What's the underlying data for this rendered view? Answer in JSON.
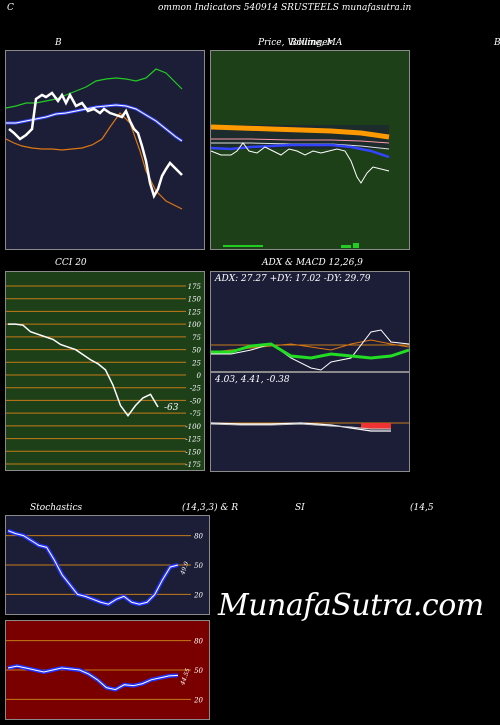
{
  "header": {
    "left_letter": "C",
    "title": "ommon  Indicators 540914  SRUSTEELS munafasutra.in"
  },
  "colors": {
    "navy": "#1c1e38",
    "green": "#1d4019",
    "maroon": "#7a0000",
    "grid_orange": "#c47a18"
  },
  "labels": {
    "bollinger": "B",
    "price_ma": "Price,  Volume,  MA",
    "price_ma_overlay": "Bollinger",
    "right_edge": "B",
    "cci": "CCI 20",
    "adx_macd": "ADX  & MACD 12,26,9",
    "adx_values": "ADX: 27.27  +DY: 17.02  -DY: 29.79",
    "macd_values": "4.03,  4.41,  -0.38",
    "cci_value": "-63",
    "stoch": "Stochastics",
    "stoch_params": "(14,3,3) & R",
    "rsi": "SI",
    "rsi_params": "(14,5",
    "stoch_value": "49.9",
    "rsi_value": "44.55",
    "watermark": "MunafaSutra.com"
  },
  "chart_data": [
    {
      "type": "line",
      "title": "B",
      "series": [
        {
          "color": "#22cc22",
          "values": [
            0.45,
            0.48,
            0.46,
            0.44,
            0.42,
            0.4,
            0.38,
            0.36,
            0.37,
            0.35,
            0.33,
            0.33,
            0.32,
            0.3,
            0.29,
            0.27,
            0.28,
            0.26,
            0.22,
            0.23,
            0.21,
            0.2,
            0.15,
            0.1,
            0.08,
            0.1,
            0.15,
            0.2,
            0.22
          ]
        },
        {
          "color": "#3344ff",
          "values": [
            0.6,
            0.6,
            0.61,
            0.6,
            0.59,
            0.58,
            0.57,
            0.56,
            0.55,
            0.55,
            0.54,
            0.53,
            0.52,
            0.51,
            0.5,
            0.49,
            0.48,
            0.47,
            0.46,
            0.45,
            0.45,
            0.46,
            0.48,
            0.52,
            0.56,
            0.6,
            0.64,
            0.68,
            0.72
          ]
        },
        {
          "color": "#ffffff",
          "values": [
            0.62,
            0.65,
            0.63,
            0.68,
            0.66,
            0.3,
            0.25,
            0.24,
            0.28,
            0.25,
            0.3,
            0.28,
            0.35,
            0.36,
            0.4,
            0.37,
            0.48,
            0.5,
            0.55,
            0.52,
            0.6,
            0.72,
            0.85,
            0.92,
            0.84,
            0.8,
            0.76,
            0.73,
            0.75
          ]
        },
        {
          "color": "#dd7711",
          "values": [
            0.75,
            0.76,
            0.77,
            0.77,
            0.76,
            0.74,
            0.72,
            0.7,
            0.68,
            0.67,
            0.66,
            0.65,
            0.64,
            0.62,
            0.6,
            0.55,
            0.5,
            0.45,
            0.44,
            0.5,
            0.55,
            0.62,
            0.72,
            0.82,
            0.88,
            0.92,
            0.94,
            0.96,
            0.97
          ]
        }
      ]
    },
    {
      "type": "line",
      "title": "Price,  Volume,  MA",
      "series": [
        {
          "color": "#ff9900",
          "values": [
            0.45,
            0.45,
            0.45,
            0.46,
            0.46,
            0.46,
            0.46,
            0.47,
            0.47,
            0.47,
            0.47,
            0.48,
            0.48,
            0.48,
            0.48,
            0.49,
            0.49,
            0.49,
            0.5,
            0.5
          ]
        },
        {
          "color": "#3344ff",
          "values": [
            0.6,
            0.6,
            0.61,
            0.6,
            0.59,
            0.59,
            0.58,
            0.58,
            0.57,
            0.57,
            0.57,
            0.58,
            0.59,
            0.6,
            0.61,
            0.62,
            0.63,
            0.64,
            0.65,
            0.66
          ]
        },
        {
          "color": "#ffffff",
          "values": [
            0.63,
            0.62,
            0.63,
            0.64,
            0.64,
            0.63,
            0.58,
            0.56,
            0.58,
            0.55,
            0.6,
            0.56,
            0.58,
            0.61,
            0.63,
            0.62,
            0.7,
            0.82,
            0.7,
            0.73
          ]
        }
      ],
      "volume": [
        0,
        0,
        0,
        0,
        0,
        0,
        0,
        0,
        0,
        0,
        0,
        0,
        0,
        0,
        0,
        0.2,
        0.6,
        1,
        0.3,
        0
      ]
    },
    {
      "type": "line",
      "title": "CCI 20",
      "ylim": [
        -175,
        175
      ],
      "yticks": [
        175,
        150,
        125,
        100,
        75,
        50,
        25,
        0,
        -25,
        -50,
        -75,
        -100,
        -125,
        -150,
        -175
      ],
      "values": [
        100,
        100,
        98,
        85,
        80,
        75,
        70,
        60,
        55,
        50,
        40,
        30,
        22,
        10,
        -20,
        -60,
        -80,
        -60,
        -45,
        -38,
        -63
      ]
    },
    {
      "type": "line",
      "title": "ADX  & MACD 12,26,9",
      "adx": {
        "ADX": 27.27,
        "+DY": 17.02,
        "-DY": 29.79
      },
      "macd": {
        "macd": 4.03,
        "signal": 4.41,
        "hist": -0.38
      }
    },
    {
      "type": "line",
      "title": "Stochastics",
      "yticks": [
        80,
        50,
        20
      ],
      "values": [
        85,
        82,
        80,
        75,
        70,
        68,
        55,
        40,
        30,
        20,
        18,
        15,
        12,
        10,
        15,
        18,
        12,
        10,
        12,
        20,
        35,
        48,
        50
      ]
    },
    {
      "type": "line",
      "title": "SI",
      "yticks": [
        80,
        50,
        20
      ],
      "values": [
        52,
        54,
        52,
        50,
        48,
        50,
        52,
        51,
        50,
        46,
        40,
        32,
        30,
        35,
        34,
        36,
        40,
        42,
        44,
        44.55
      ]
    }
  ]
}
